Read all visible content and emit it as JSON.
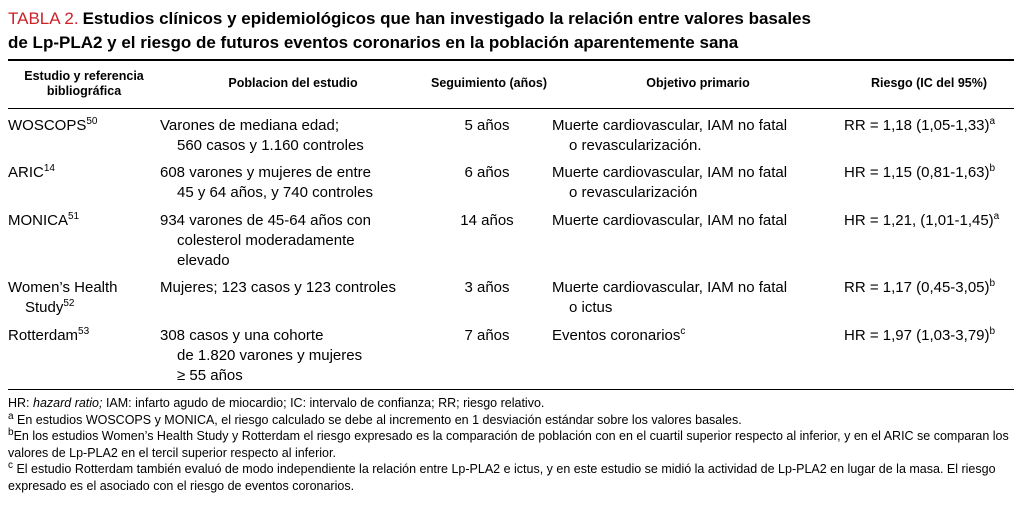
{
  "accent_color": "#cc2229",
  "title": {
    "label": "TABLA 2.",
    "line1": "Estudios clínicos y epidemiológicos que han investigado la relación entre valores basales",
    "line2": "de Lp-PLA2 y el riesgo de futuros eventos coronarios en la población aparentemente sana"
  },
  "table": {
    "headers": {
      "study": "Estudio y referencia bibliográfica",
      "population": "Poblacion del estudio",
      "followup": "Seguimiento (años)",
      "objective": "Objetivo primario",
      "risk": "Riesgo (IC del 95%)"
    },
    "rows": [
      {
        "study": {
          "name": "WOSCOPS",
          "ref": "50"
        },
        "population": [
          "Varones de mediana edad;",
          "560 casos y 1.160 controles"
        ],
        "followup": "5 años",
        "objective": [
          "Muerte cardiovascular, IAM no fatal",
          "o revascularización."
        ],
        "risk": {
          "value": "RR = 1,18 (1,05-1,33)",
          "sup": "a"
        }
      },
      {
        "study": {
          "name": "ARIC",
          "ref": "14"
        },
        "population": [
          "608 varones y mujeres de entre",
          "45 y 64 años, y 740 controles"
        ],
        "followup": "6 años",
        "objective": [
          "Muerte cardiovascular, IAM no fatal",
          "o revascularización"
        ],
        "risk": {
          "value": "HR = 1,15 (0,81-1,63)",
          "sup": "b"
        }
      },
      {
        "study": {
          "name": "MONICA",
          "ref": "51"
        },
        "population": [
          "934 varones de 45-64 años con",
          "colesterol moderadamente",
          "elevado"
        ],
        "followup": "14 años",
        "objective": [
          "Muerte cardiovascular, IAM no fatal"
        ],
        "risk": {
          "value": "HR = 1,21, (1,01-1,45)",
          "sup": "a"
        }
      },
      {
        "study": {
          "name": "Women’s Health",
          "name2": "Study",
          "ref": "52"
        },
        "population": [
          "Mujeres; 123 casos y 123 controles"
        ],
        "followup": "3 años",
        "objective": [
          "Muerte cardiovascular, IAM no fatal",
          "o ictus"
        ],
        "risk": {
          "value": "RR = 1,17 (0,45-3,05)",
          "sup": "b"
        }
      },
      {
        "study": {
          "name": "Rotterdam",
          "ref": "53"
        },
        "population": [
          "308 casos y una cohorte",
          "de 1.820 varones y mujeres",
          "≥ 55 años"
        ],
        "followup": "7 años",
        "objective": {
          "text": "Eventos coronarios",
          "sup": "c"
        },
        "risk": {
          "value": "HR = 1,97 (1,03-3,79)",
          "sup": "b"
        }
      }
    ]
  },
  "footnotes": {
    "abbr": {
      "pre": "HR: ",
      "italic": "hazard ratio;",
      "post": " IAM: infarto agudo de miocardio; IC: intervalo de confianza; RR; riesgo relativo."
    },
    "a": {
      "sup": "a",
      "text": " En estudios WOSCOPS y MONICA, el riesgo calculado se debe al incremento en 1 desviación estándar sobre los valores basales."
    },
    "b": {
      "sup": "b",
      "text": "En los estudios Women’s Health Study y Rotterdam el riesgo expresado es la comparación de población con en el cuartil superior respecto al inferior, y en el ARIC se comparan los valores de Lp-PLA2 en el tercil superior respecto al inferior."
    },
    "c": {
      "sup": "c",
      "text": " El estudio Rotterdam también evaluó de modo independiente la relación entre Lp-PLA2 e ictus, y en este estudio se midió la actividad de Lp-PLA2 en lugar de la masa. El riesgo expresado es el asociado con el riesgo de eventos coronarios."
    }
  }
}
